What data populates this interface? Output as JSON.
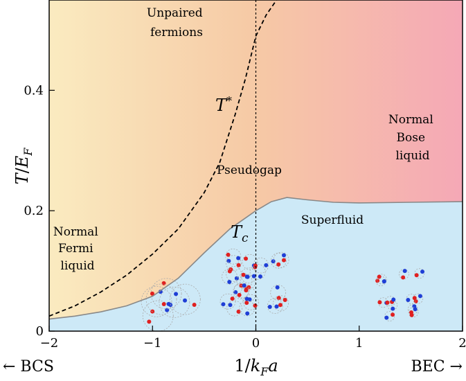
{
  "chart_data": {
    "type": "line",
    "title": "",
    "xlabel": "1/k_F a",
    "ylabel": "T/E_F",
    "xlim": [
      -2,
      2
    ],
    "ylim": [
      0,
      0.55
    ],
    "x_ticks": [
      -2,
      -1,
      0,
      1,
      2
    ],
    "x_tick_labels": [
      "−2",
      "−1",
      "0",
      "1",
      "2"
    ],
    "y_ticks": [
      0,
      0.2,
      0.4
    ],
    "y_tick_labels": [
      "0",
      "0.2",
      "0.4"
    ],
    "grid": false,
    "series": [
      {
        "name": "T*",
        "style": "dashed",
        "color": "#000000",
        "x": [
          -2.0,
          -1.75,
          -1.5,
          -1.25,
          -1.0,
          -0.75,
          -0.5,
          -0.35,
          -0.2,
          -0.1,
          0.0,
          0.1,
          0.2
        ],
        "y": [
          0.025,
          0.042,
          0.065,
          0.093,
          0.128,
          0.17,
          0.23,
          0.28,
          0.36,
          0.42,
          0.49,
          0.525,
          0.55
        ]
      },
      {
        "name": "T_c",
        "style": "solid",
        "color": "#888888",
        "x": [
          -2.0,
          -1.75,
          -1.5,
          -1.25,
          -1.0,
          -0.75,
          -0.5,
          -0.25,
          0.0,
          0.15,
          0.3,
          0.5,
          0.75,
          1.0,
          1.5,
          2.0
        ],
        "y": [
          0.02,
          0.025,
          0.032,
          0.042,
          0.058,
          0.088,
          0.13,
          0.17,
          0.2,
          0.215,
          0.222,
          0.218,
          0.214,
          0.213,
          0.214,
          0.215
        ]
      }
    ],
    "reference_lines": [
      {
        "axis": "x",
        "value": 0,
        "style": "dotted",
        "color": "#000000"
      }
    ],
    "curve_labels": {
      "t_star": "T*",
      "t_c": "T_c"
    },
    "regions": {
      "unpaired": [
        "Unpaired",
        "fermions"
      ],
      "normal_bose": [
        "Normal",
        "Bose",
        "liquid"
      ],
      "pseudogap": "Pseudogap",
      "superfluid": "Superfluid",
      "normal_fermi": [
        "Normal",
        "Fermi",
        "liquid"
      ]
    },
    "bottom_labels": {
      "left": "← BCS",
      "right": "BEC →"
    },
    "colors": {
      "gradient_left": "#faebc0",
      "gradient_mid": "#f6c9a5",
      "gradient_right": "#f5a8b6",
      "superfluid_fill": "#cde9f7",
      "dashed_line": "#000000",
      "tc_line": "#888888",
      "particle_red": "#e02020",
      "particle_blue": "#1f3fd6",
      "pair_ring": "#aaaaaa"
    }
  }
}
